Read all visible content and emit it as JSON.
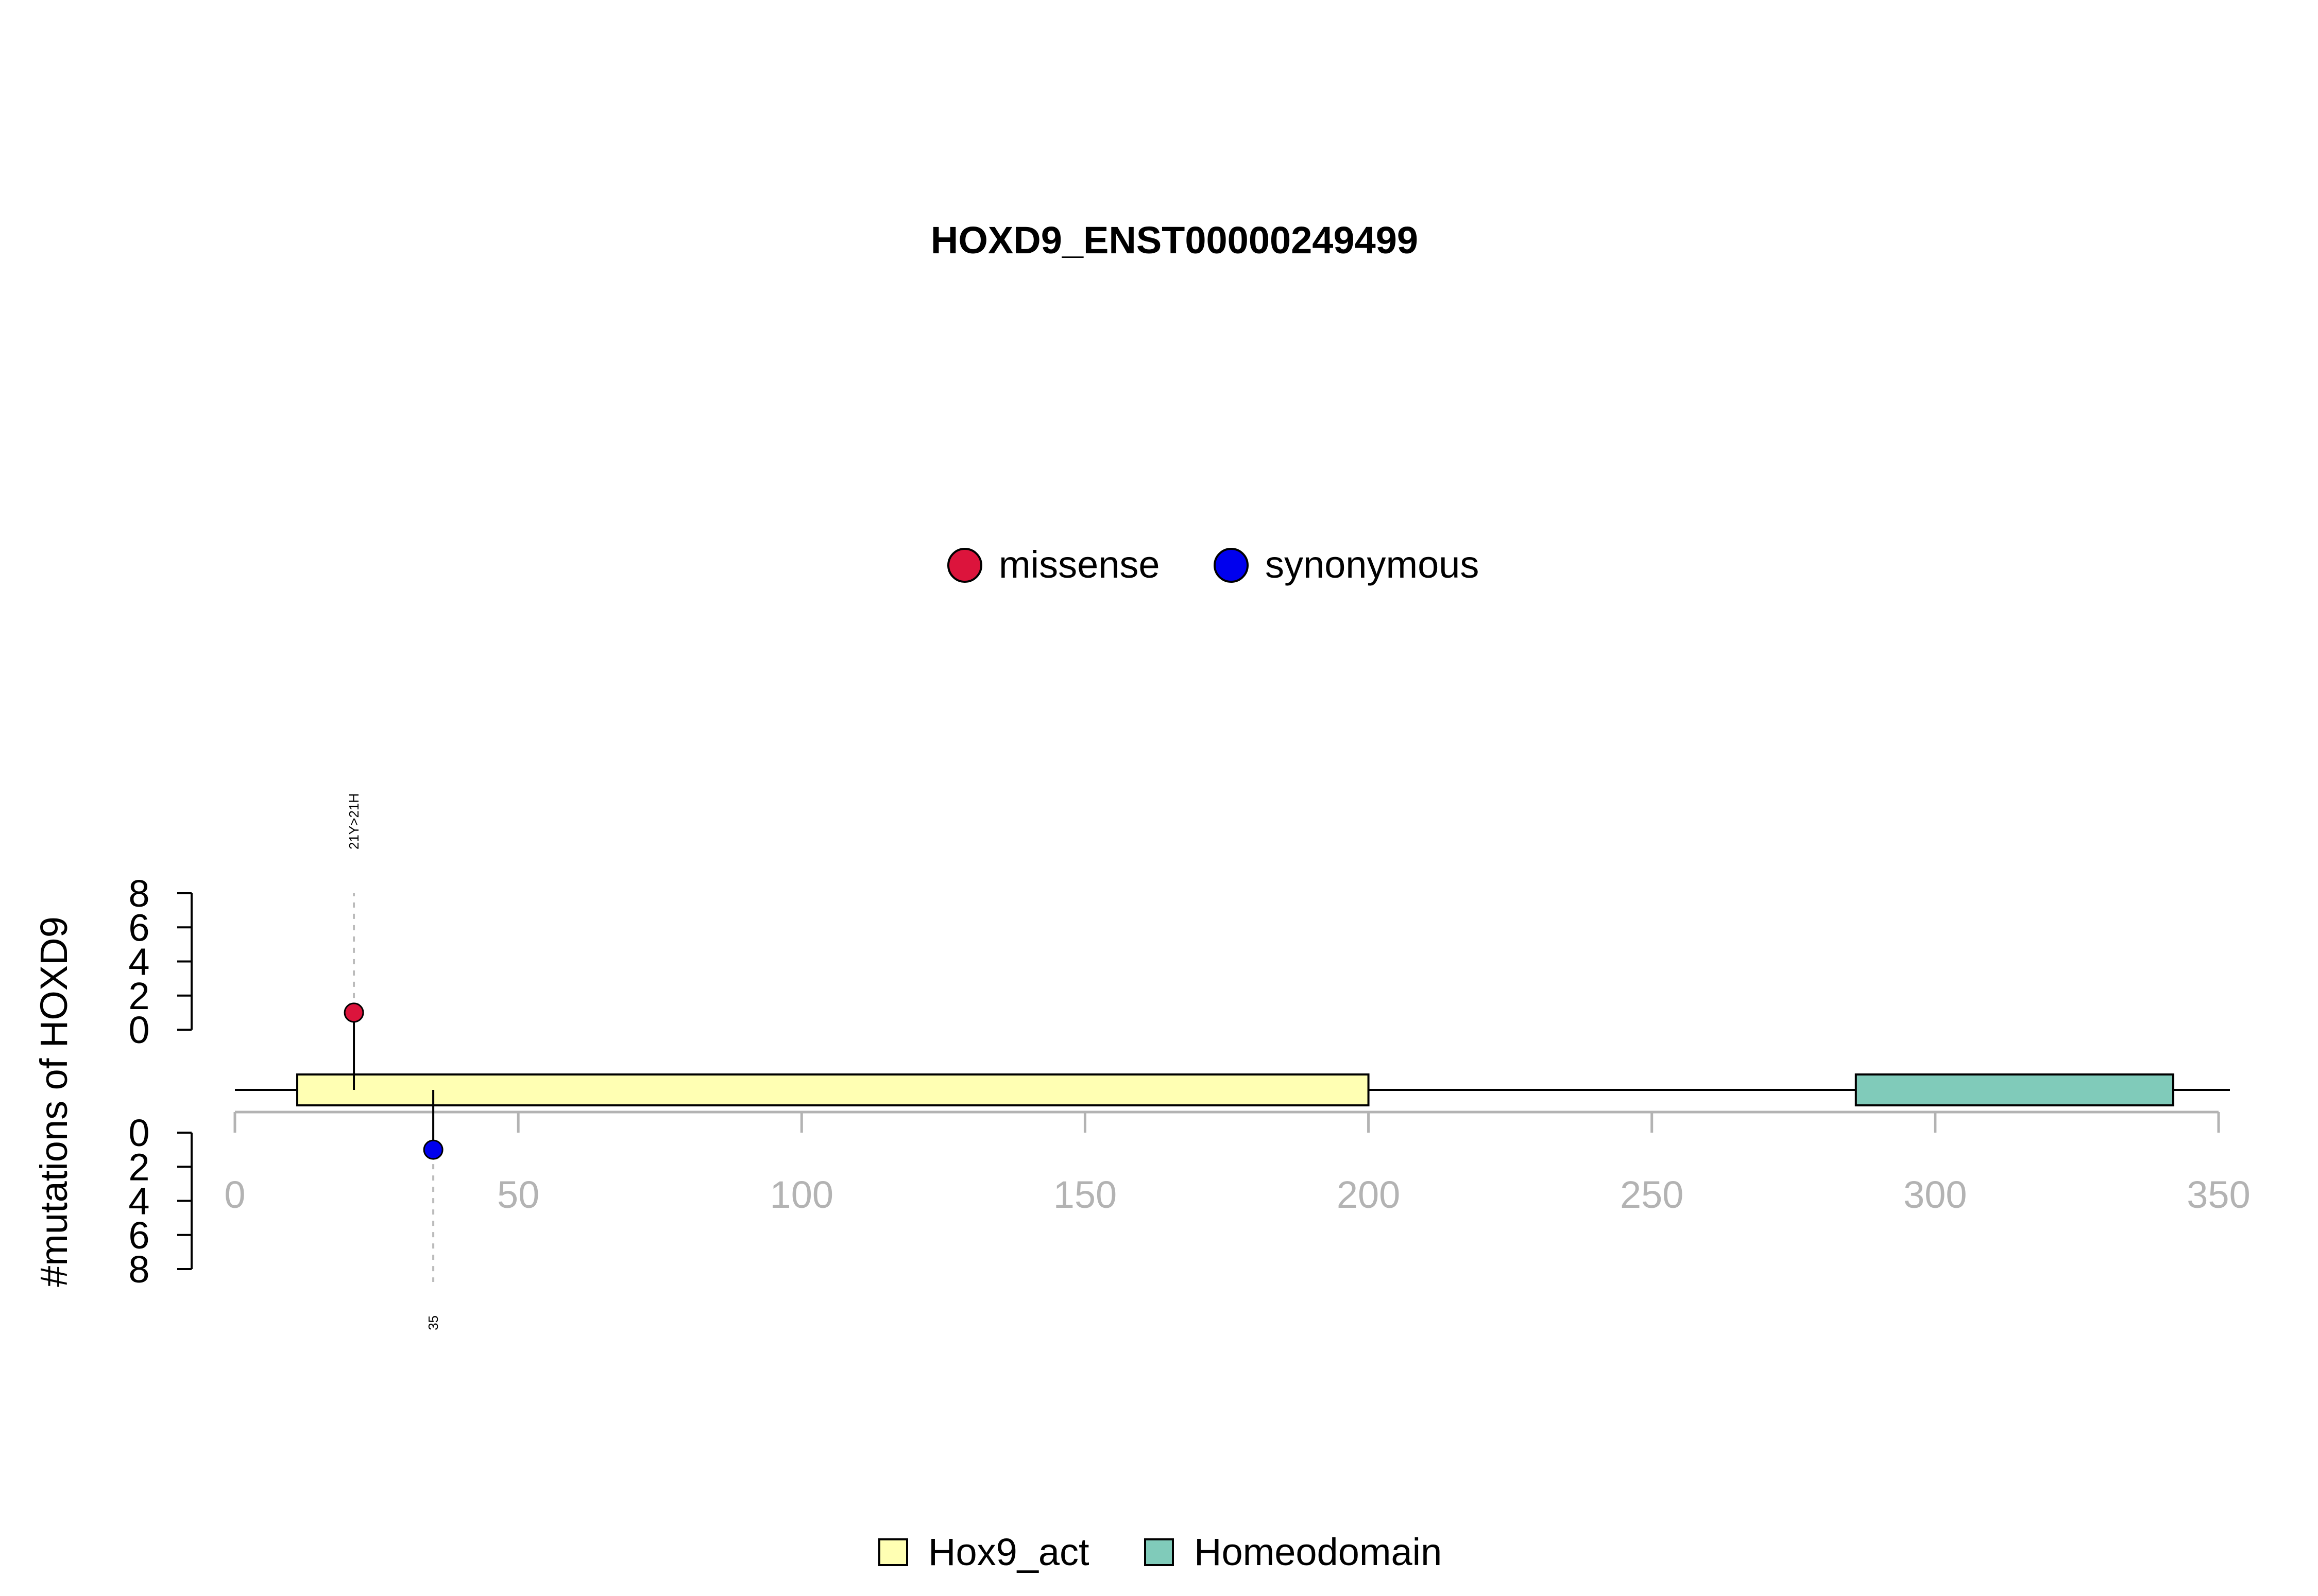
{
  "chart_data": {
    "type": "lollipop",
    "title": "HOXD9_ENST00000249499",
    "ylabel": "#mutations of HOXD9",
    "xlim": [
      0,
      350
    ],
    "x_ticks": [
      0,
      50,
      100,
      150,
      200,
      250,
      300,
      350
    ],
    "protein_length": 352,
    "y_ticks_upper": [
      0,
      2,
      4,
      6,
      8
    ],
    "y_ticks_lower": [
      0,
      2,
      4,
      6,
      8
    ],
    "ylim": [
      0,
      8
    ],
    "mutation_legend": [
      {
        "label": "missense",
        "color": "#dc143c"
      },
      {
        "label": "synonymous",
        "color": "#0000ee"
      }
    ],
    "mutations": [
      {
        "position": 21,
        "count": 1,
        "type": "missense",
        "strand": "upper",
        "label": "21Y>21H",
        "color": "#dc143c"
      },
      {
        "position": 35,
        "count": 1,
        "type": "synonymous",
        "strand": "lower",
        "label": "35",
        "color": "#0000ee"
      }
    ],
    "domains": [
      {
        "name": "Hox9_act",
        "start": 11,
        "end": 200,
        "color": "#ffffb3"
      },
      {
        "name": "Homeodomain",
        "start": 286,
        "end": 342,
        "color": "#80cbba"
      }
    ]
  }
}
